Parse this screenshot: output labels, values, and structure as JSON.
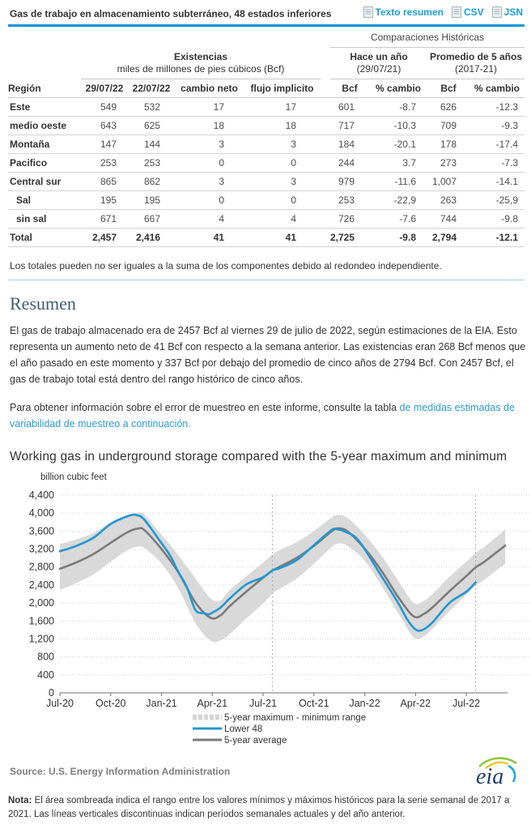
{
  "header": {
    "title": "Gas de trabajo en almacenamiento subterráneo, 48 estados inferiores",
    "links": [
      {
        "id": "texto-resumen-link",
        "label": "Texto resumen"
      },
      {
        "id": "csv-link",
        "label": "CSV"
      },
      {
        "id": "jsn-link",
        "label": "JSN"
      }
    ]
  },
  "table": {
    "group_right": "Comparaciones Históricas",
    "existencias_title": "Existencias",
    "existencias_subtitle": "miles de millones de pies cúbicos (Bcf)",
    "year_ago_title": "Hace un año",
    "year_ago_sub": "(29/07/21)",
    "avg5_title": "Promedio de 5 años",
    "avg5_sub": "(2017-21)",
    "columns": [
      "Región",
      "29/07/22",
      "22/07/22",
      "cambio neto",
      "flujo implicito",
      "Bcf",
      "% cambio",
      "Bcf",
      "% cambio"
    ],
    "rows": [
      {
        "region": "Este",
        "indent": false,
        "bold": false,
        "values": [
          "549",
          "532",
          "17",
          "17",
          "601",
          "-8.7",
          "626",
          "-12.3"
        ]
      },
      {
        "region": "medio oeste",
        "indent": false,
        "bold": false,
        "values": [
          "643",
          "625",
          "18",
          "18",
          "717",
          "-10.3",
          "709",
          "-9.3"
        ]
      },
      {
        "region": "Montaña",
        "indent": false,
        "bold": false,
        "values": [
          "147",
          "144",
          "3",
          "3",
          "184",
          "-20.1",
          "178",
          "-17.4"
        ]
      },
      {
        "region": "Pacifico",
        "indent": false,
        "bold": false,
        "values": [
          "253",
          "253",
          "0",
          "0",
          "244",
          "3.7",
          "273",
          "-7.3"
        ]
      },
      {
        "region": "Central sur",
        "indent": false,
        "bold": false,
        "values": [
          "865",
          "862",
          "3",
          "3",
          "979",
          "-11.6",
          "1,007",
          "-14.1"
        ]
      },
      {
        "region": "Sal",
        "indent": true,
        "bold": false,
        "values": [
          "195",
          "195",
          "0",
          "0",
          "253",
          "-22,9",
          "263",
          "-25,9"
        ]
      },
      {
        "region": "sin sal",
        "indent": true,
        "bold": false,
        "values": [
          "671",
          "667",
          "4",
          "4",
          "726",
          "-7.6",
          "744",
          "-9.8"
        ]
      },
      {
        "region": "Total",
        "indent": false,
        "bold": true,
        "values": [
          "2,457",
          "2,416",
          "41",
          "41",
          "2,725",
          "-9.8",
          "2,794",
          "-12.1"
        ]
      }
    ],
    "footnote": "Los totales pueden no ser iguales a la suma de los componentes debido al redondeo independiente."
  },
  "summary": {
    "heading": "Resumen",
    "para1": "El gas de trabajo almacenado era de 2457 Bcf al viernes 29 de julio de 2022, según estimaciones de la EIA. Esto representa un aumento neto de 41 Bcf con respecto a la semana anterior. Las existencias eran 268 Bcf menos que el año pasado en este momento y 337 Bcf por debajo del promedio de cinco años de 2794 Bcf. Con 2457 Bcf, el gas de trabajo total está dentro del rango histórico de cinco años.",
    "para2_text": "Para obtener información sobre el error de muestreo en este informe, consulte la tabla ",
    "para2_link": "de medidas estimadas de variabilidad de muestreo a continuación."
  },
  "chart_data": {
    "type": "line",
    "title": "Working gas in underground storage compared with the 5-year maximum and minimum",
    "ylabel": "billion cubic feet",
    "ylim": [
      0,
      4400
    ],
    "ytick_step": 400,
    "x_unit": "months since Jul-2020",
    "xlim": [
      0,
      26.3
    ],
    "xtick_positions": [
      0,
      3,
      6,
      9,
      12,
      15,
      18,
      21,
      24
    ],
    "xtick_labels": [
      "Jul-20",
      "Oct-20",
      "Jan-21",
      "Apr-21",
      "Jul-21",
      "Oct-21",
      "Jan-22",
      "Apr-22",
      "Jul-22"
    ],
    "dashed_vlines_x": [
      12.55,
      24.55
    ],
    "grid": true,
    "legend_position": "bottom-center",
    "band": {
      "name": "5-year maximum - minimum range",
      "color": "#d9d9d9",
      "x": [
        0,
        1,
        2,
        3,
        4,
        4.6,
        5,
        6,
        7,
        8,
        8.9,
        9.5,
        10,
        11,
        12,
        12.55,
        13,
        14,
        15,
        16,
        16.4,
        17,
        18,
        19,
        20,
        20.9,
        21.5,
        22,
        23,
        24,
        24.55,
        25,
        26,
        26.3
      ],
      "max": [
        3310,
        3420,
        3560,
        3800,
        3960,
        4010,
        3960,
        3520,
        3060,
        2550,
        2100,
        2060,
        2280,
        2590,
        2900,
        3080,
        3180,
        3360,
        3600,
        3890,
        3960,
        3890,
        3520,
        3050,
        2480,
        2000,
        2050,
        2200,
        2580,
        2920,
        3110,
        3230,
        3540,
        3650
      ],
      "min": [
        2290,
        2450,
        2640,
        2920,
        3180,
        3250,
        3220,
        2880,
        2320,
        1560,
        1160,
        1170,
        1300,
        1650,
        1990,
        2210,
        2320,
        2550,
        2870,
        3230,
        3320,
        3270,
        2940,
        2380,
        1760,
        1230,
        1260,
        1430,
        1820,
        2180,
        2390,
        2500,
        2790,
        2870
      ]
    },
    "series": [
      {
        "name": "Lower 48",
        "color": "#2196d3",
        "x": [
          0,
          1,
          2,
          3,
          4,
          4.5,
          5,
          6,
          6.5,
          7,
          7.5,
          8,
          8.5,
          8.8,
          9,
          9.5,
          10,
          11,
          12,
          12.55,
          13,
          14,
          15,
          16,
          16.3,
          17,
          17.5,
          18,
          19,
          20,
          20.5,
          21,
          21.4,
          22,
          23,
          24,
          24.55
        ],
        "y": [
          3150,
          3274,
          3455,
          3756,
          3932,
          3958,
          3848,
          3330,
          3060,
          2689,
          2350,
          1845,
          1770,
          1750,
          1784,
          1900,
          2090,
          2411,
          2574,
          2725,
          2776,
          2958,
          3288,
          3611,
          3644,
          3564,
          3450,
          3195,
          2591,
          1986,
          1640,
          1412,
          1398,
          1567,
          1999,
          2251,
          2457
        ]
      },
      {
        "name": "5-year average",
        "color": "#7a7a7a",
        "x": [
          0,
          1,
          2,
          3,
          4,
          4.6,
          5,
          6,
          7,
          8,
          8.9,
          9.5,
          10,
          11,
          12,
          12.55,
          13,
          14,
          15,
          16,
          16.4,
          17,
          18,
          19,
          20,
          20.9,
          21.5,
          22,
          23,
          24,
          24.55,
          25,
          26,
          26.3
        ],
        "y": [
          2760,
          2907,
          3093,
          3340,
          3577,
          3655,
          3620,
          3200,
          2680,
          2010,
          1670,
          1730,
          1920,
          2250,
          2560,
          2720,
          2810,
          3010,
          3270,
          3580,
          3660,
          3590,
          3210,
          2710,
          2120,
          1700,
          1760,
          1900,
          2260,
          2600,
          2794,
          2900,
          3190,
          3280
        ]
      }
    ],
    "legend": [
      {
        "swatch": "band",
        "color": "#d5d5d5",
        "label": "5-year maximum - minimum range"
      },
      {
        "swatch": "line",
        "color": "#2196d3",
        "label": "Lower 48"
      },
      {
        "swatch": "line",
        "color": "#7a7a7a",
        "label": "5-year average"
      }
    ]
  },
  "footer": {
    "source": "Source:  U.S. Energy Information Administration",
    "nota_label": "Nota:",
    "nota_text": " El área sombreada indica el rango entre los valores mínimos y máximos históricos para la serie semanal de 2017 a 2021. Las líneas verticales discontinuas indican períodos semanales actuales y del año anterior.",
    "logo_text": "eia"
  },
  "colors": {
    "accent_blue": "#0096d7",
    "link_blue": "#1a9dd9",
    "chart_lower48": "#2196d3",
    "chart_average": "#7a7a7a",
    "chart_band": "#d9d9d9"
  }
}
